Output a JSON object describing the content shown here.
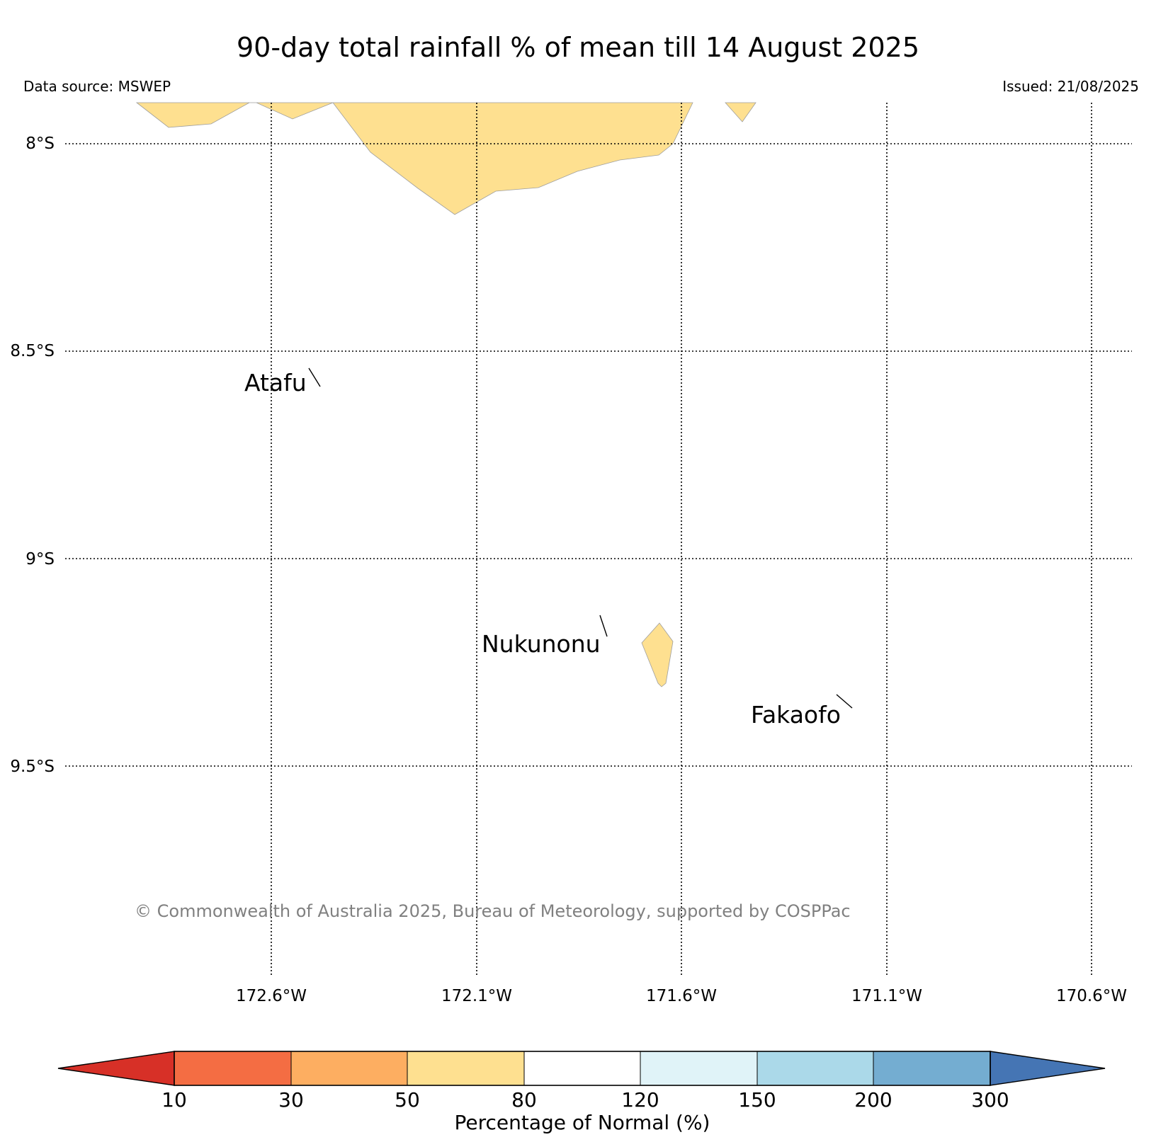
{
  "map": {
    "title": "90-day total rainfall % of mean till 14 August 2025",
    "data_source": "Data source: MSWEP",
    "issued": "Issued: 21/08/2025",
    "copyright": "© Commonwealth of Australia 2025, Bureau of Meteorology, supported by COSPPac",
    "lat_ticks": [
      "8°S",
      "8.5°S",
      "9°S",
      "9.5°S"
    ],
    "lon_ticks": [
      "172.6°W",
      "172.1°W",
      "171.6°W",
      "171.1°W",
      "170.6°W"
    ],
    "places": [
      {
        "name": "Atafu"
      },
      {
        "name": "Nukunonu"
      },
      {
        "name": "Fakaofo"
      }
    ],
    "anomaly_fill_color": "#fee090"
  },
  "colorbar": {
    "label": "Percentage of Normal (%)",
    "ticks": [
      "10",
      "30",
      "50",
      "80",
      "120",
      "150",
      "200",
      "300"
    ],
    "colors": [
      "#d73027",
      "#f46d43",
      "#fdae61",
      "#fee090",
      "#ffffff",
      "#e0f3f8",
      "#abd9e9",
      "#74add1",
      "#4575b4"
    ]
  }
}
